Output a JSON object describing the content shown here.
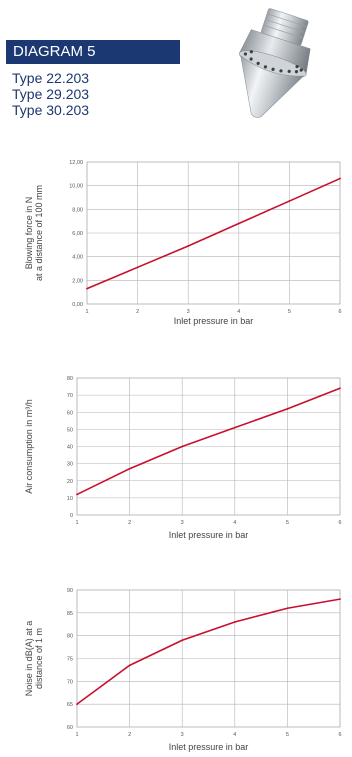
{
  "header": {
    "title": "DIAGRAM 5",
    "types": [
      "Type 22.203",
      "Type 29.203",
      "Type 30.203"
    ]
  },
  "colors": {
    "brand": "#1c3872",
    "line": "#c8102e",
    "grid": "#b5b5b5"
  },
  "image": {
    "icon": "nozzle-icon"
  },
  "chart_data": [
    {
      "type": "line",
      "x": [
        1,
        2,
        3,
        4,
        5,
        6
      ],
      "y": [
        1.3,
        3.1,
        4.9,
        6.8,
        8.7,
        10.6
      ],
      "xlabel": "Inlet pressure in bar",
      "ylabel": [
        "Blowing force in N",
        "at a distance of 100 mm"
      ],
      "xlim": [
        1,
        6
      ],
      "ylim": [
        0,
        12
      ],
      "yticks": [
        "0,00",
        "2,00",
        "4,00",
        "6,00",
        "8,00",
        "10,00",
        "12,00"
      ],
      "xticks": [
        "1",
        "2",
        "3",
        "4",
        "5",
        "6"
      ],
      "grid": true
    },
    {
      "type": "line",
      "x": [
        1,
        2,
        3,
        4,
        5,
        6
      ],
      "y": [
        12,
        27,
        40,
        51,
        62,
        74
      ],
      "xlabel": "Inlet pressure in bar",
      "ylabel": [
        "Air consumption in m³/h"
      ],
      "xlim": [
        1,
        6
      ],
      "ylim": [
        0,
        80
      ],
      "yticks": [
        "0",
        "10",
        "20",
        "30",
        "40",
        "50",
        "60",
        "70",
        "80"
      ],
      "xticks": [
        "1",
        "2",
        "3",
        "4",
        "5",
        "6"
      ],
      "grid": true
    },
    {
      "type": "line",
      "x": [
        1,
        2,
        3,
        4,
        5,
        6
      ],
      "y": [
        65,
        73.5,
        79,
        83,
        86,
        88
      ],
      "xlabel": "Inlet pressure in bar",
      "ylabel": [
        "Noise in dB(A) at a",
        "distance of 1 m"
      ],
      "xlim": [
        1,
        6
      ],
      "ylim": [
        60,
        90
      ],
      "yticks": [
        "60",
        "65",
        "70",
        "75",
        "80",
        "85",
        "90"
      ],
      "xticks": [
        "1",
        "2",
        "3",
        "4",
        "5",
        "6"
      ],
      "grid": true
    }
  ]
}
